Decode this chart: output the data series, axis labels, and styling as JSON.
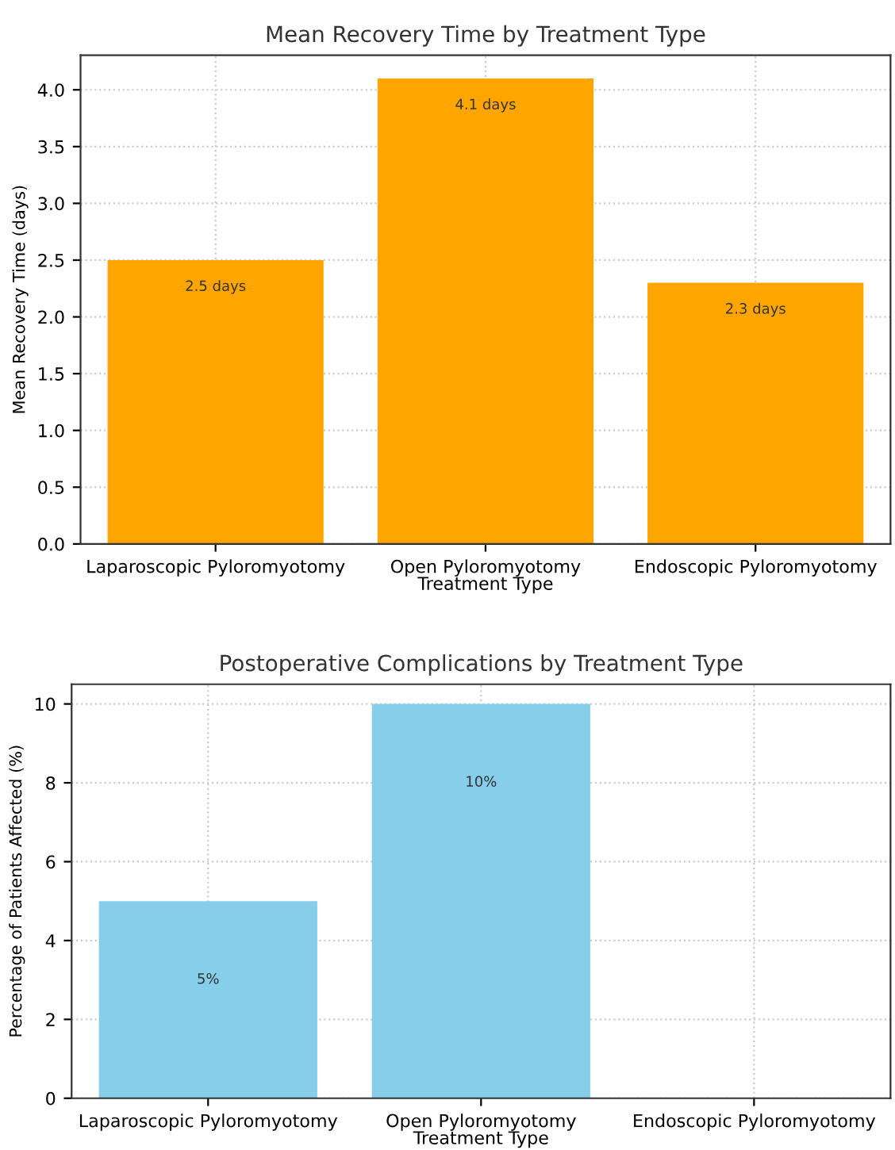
{
  "chart_data": [
    {
      "type": "bar",
      "title": "Mean Recovery Time by Treatment Type",
      "xlabel": "Treatment Type",
      "ylabel": "Mean Recovery Time (days)",
      "categories": [
        "Laparoscopic Pyloromyotomy",
        "Open Pyloromyotomy",
        "Endoscopic Pyloromyotomy"
      ],
      "values": [
        2.5,
        4.1,
        2.3
      ],
      "value_labels": [
        "2.5 days",
        "4.1 days",
        "2.3 days"
      ],
      "color": "#ffa500",
      "ylim": [
        0,
        4.305
      ],
      "yticks": [
        {
          "value": 0,
          "label": "0.0"
        },
        {
          "value": 0.5,
          "label": "0.5"
        },
        {
          "value": 1,
          "label": "1.0"
        },
        {
          "value": 1.5,
          "label": "1.5"
        },
        {
          "value": 2,
          "label": "2.0"
        },
        {
          "value": 2.5,
          "label": "2.5"
        },
        {
          "value": 3,
          "label": "3.0"
        },
        {
          "value": 3.5,
          "label": "3.5"
        },
        {
          "value": 4,
          "label": "4.0"
        }
      ],
      "grid": true
    },
    {
      "type": "bar",
      "title": "Postoperative Complications by Treatment Type",
      "xlabel": "Treatment Type",
      "ylabel": "Percentage of Patients Affected (%)",
      "categories": [
        "Laparoscopic Pyloromyotomy",
        "Open Pyloromyotomy",
        "Endoscopic Pyloromyotomy"
      ],
      "values": [
        5,
        10,
        0
      ],
      "value_labels": [
        "5%",
        "10%",
        null
      ],
      "color": "#87ceeb",
      "ylim": [
        0,
        10.5
      ],
      "yticks": [
        0,
        2,
        4,
        6,
        8,
        10
      ],
      "grid": true
    }
  ]
}
